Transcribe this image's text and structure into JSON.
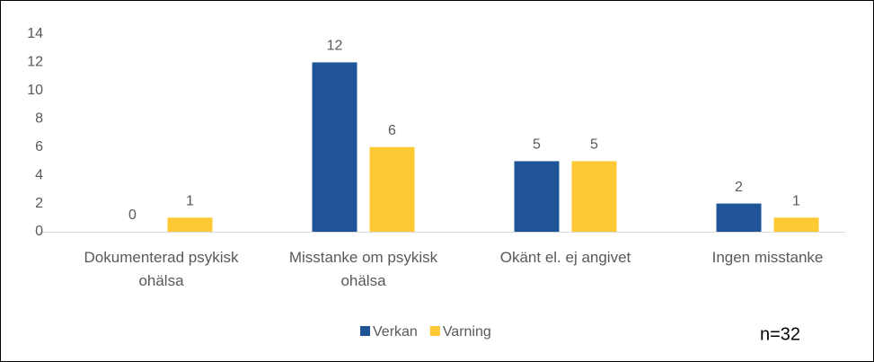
{
  "chart_data": {
    "type": "bar",
    "categories": [
      "Dokumenterad psykisk ohälsa",
      "Misstanke om psykisk ohälsa",
      "Okänt el. ej angivet",
      "Ingen misstanke"
    ],
    "series": [
      {
        "name": "Verkan",
        "color": "#1f5597",
        "values": [
          0,
          12,
          5,
          2
        ]
      },
      {
        "name": "Varning",
        "color": "#ffc933",
        "values": [
          1,
          6,
          5,
          1
        ]
      }
    ],
    "ylim": [
      0,
      14
    ],
    "yticks": [
      0,
      2,
      4,
      6,
      8,
      10,
      12,
      14
    ],
    "grid": false,
    "legend": "bottom",
    "annotation": "n=32"
  }
}
